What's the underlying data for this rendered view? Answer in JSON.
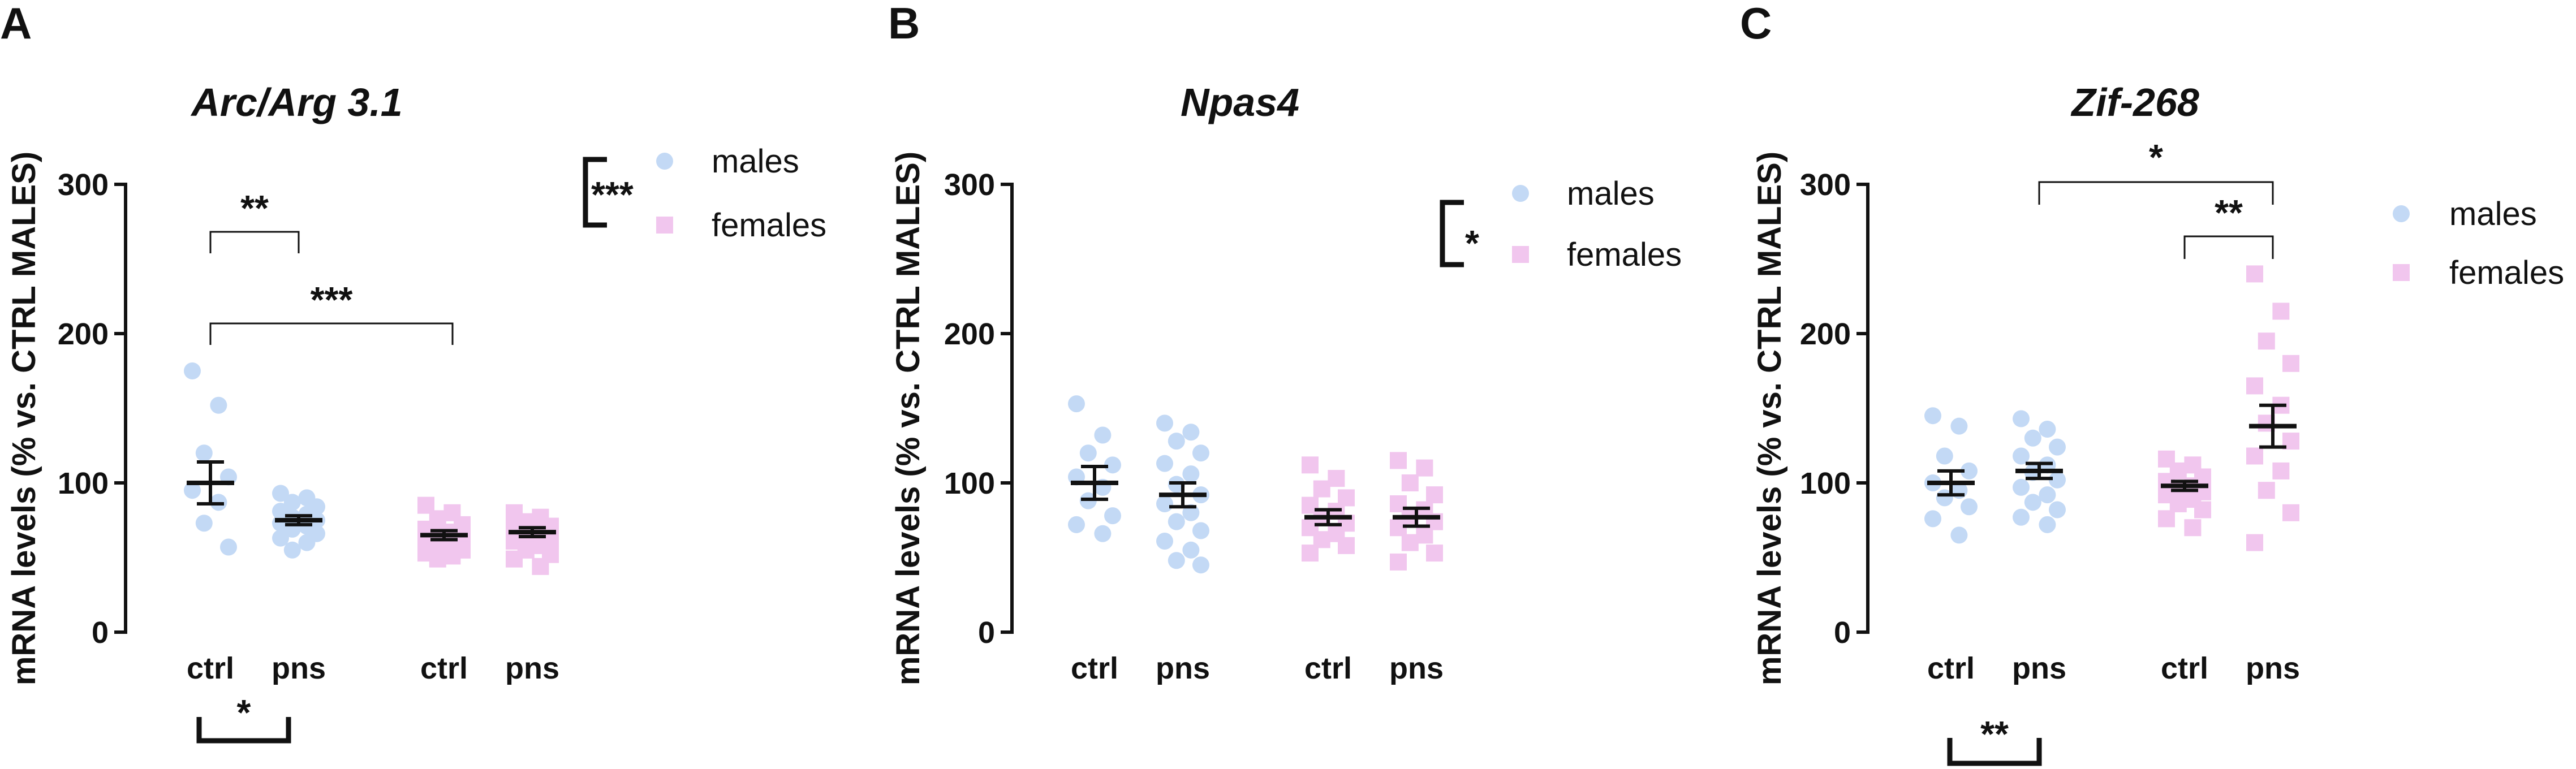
{
  "colors": {
    "males": "#c3d9f5",
    "females": "#f1c6ee",
    "ink": "#111111"
  },
  "chart_data": [
    {
      "type": "scatter",
      "panel": "A",
      "title": "Arc/Arg 3.1",
      "xlabel": "",
      "ylabel": "mRNA levels (% vs. CTRL MALES)",
      "ylim": [
        0,
        300
      ],
      "yticks": [
        0,
        100,
        200,
        300
      ],
      "categories": [
        "ctrl",
        "pns",
        "ctrl",
        "pns"
      ],
      "series": [
        {
          "name": "males",
          "marker": "circle",
          "groups": [
            {
              "category_index": 0,
              "label": "ctrl",
              "values": [
                175,
                152,
                120,
                104,
                95,
                87,
                73,
                57
              ],
              "mean": 100,
              "sem": 14
            },
            {
              "category_index": 1,
              "label": "pns",
              "values": [
                93,
                90,
                87,
                84,
                81,
                79,
                77,
                75,
                73,
                71,
                69,
                66,
                63,
                60,
                55
              ],
              "mean": 75,
              "sem": 3
            }
          ]
        },
        {
          "name": "females",
          "marker": "square",
          "groups": [
            {
              "category_index": 2,
              "label": "ctrl",
              "values": [
                85,
                80,
                76,
                72,
                69,
                67,
                65,
                63,
                61,
                59,
                57,
                55,
                53,
                51,
                49
              ],
              "mean": 65,
              "sem": 3
            },
            {
              "category_index": 3,
              "label": "pns",
              "values": [
                80,
                77,
                74,
                71,
                69,
                67,
                65,
                63,
                61,
                58,
                55,
                52,
                49,
                44
              ],
              "mean": 67,
              "sem": 3
            }
          ]
        }
      ],
      "legend": {
        "entries": [
          "males",
          "females"
        ],
        "position": "top-right",
        "bracket_label": "***"
      },
      "comparisons": [
        {
          "from": 0,
          "to": 1,
          "label": "**"
        },
        {
          "from": 0,
          "to": 2,
          "label": "***"
        }
      ],
      "bottom_bracket": {
        "from": 0,
        "to": 1,
        "label": "*"
      }
    },
    {
      "type": "scatter",
      "panel": "B",
      "title": "Npas4",
      "xlabel": "",
      "ylabel": "mRNA levels (% vs. CTRL MALES)",
      "ylim": [
        0,
        300
      ],
      "yticks": [
        0,
        100,
        200,
        300
      ],
      "categories": [
        "ctrl",
        "pns",
        "ctrl",
        "pns"
      ],
      "series": [
        {
          "name": "males",
          "marker": "circle",
          "groups": [
            {
              "category_index": 0,
              "label": "ctrl",
              "values": [
                153,
                132,
                120,
                112,
                104,
                97,
                88,
                78,
                72,
                66
              ],
              "mean": 100,
              "sem": 11
            },
            {
              "category_index": 1,
              "label": "pns",
              "values": [
                140,
                134,
                128,
                120,
                113,
                106,
                99,
                92,
                86,
                80,
                74,
                68,
                61,
                55,
                48,
                45
              ],
              "mean": 92,
              "sem": 8
            }
          ]
        },
        {
          "name": "females",
          "marker": "square",
          "groups": [
            {
              "category_index": 2,
              "label": "ctrl",
              "values": [
                112,
                103,
                96,
                90,
                85,
                81,
                77,
                73,
                70,
                66,
                62,
                58,
                53
              ],
              "mean": 77,
              "sem": 5
            },
            {
              "category_index": 3,
              "label": "pns",
              "values": [
                115,
                110,
                100,
                92,
                86,
                82,
                78,
                74,
                70,
                65,
                60,
                53,
                47
              ],
              "mean": 77,
              "sem": 6
            }
          ]
        }
      ],
      "legend": {
        "entries": [
          "males",
          "females"
        ],
        "position": "top-right",
        "bracket_label": "*"
      },
      "comparisons": [],
      "bottom_bracket": null
    },
    {
      "type": "scatter",
      "panel": "C",
      "title": "Zif-268",
      "xlabel": "",
      "ylabel": "mRNA levels (% vs. CTRL MALES)",
      "ylim": [
        0,
        300
      ],
      "yticks": [
        0,
        100,
        200,
        300
      ],
      "categories": [
        "ctrl",
        "pns",
        "ctrl",
        "pns"
      ],
      "series": [
        {
          "name": "males",
          "marker": "circle",
          "groups": [
            {
              "category_index": 0,
              "label": "ctrl",
              "values": [
                145,
                138,
                118,
                108,
                100,
                95,
                90,
                84,
                76,
                65
              ],
              "mean": 100,
              "sem": 8
            },
            {
              "category_index": 1,
              "label": "pns",
              "values": [
                143,
                136,
                130,
                124,
                118,
                112,
                107,
                102,
                97,
                92,
                87,
                82,
                77,
                72
              ],
              "mean": 108,
              "sem": 5
            }
          ]
        },
        {
          "name": "females",
          "marker": "square",
          "groups": [
            {
              "category_index": 2,
              "label": "ctrl",
              "values": [
                116,
                112,
                108,
                104,
                101,
                98,
                96,
                94,
                92,
                89,
                86,
                82,
                76,
                70
              ],
              "mean": 98,
              "sem": 3
            },
            {
              "category_index": 3,
              "label": "pns",
              "values": [
                240,
                215,
                195,
                180,
                165,
                152,
                140,
                128,
                118,
                108,
                95,
                80,
                60
              ],
              "mean": 138,
              "sem": 14
            }
          ]
        }
      ],
      "legend": {
        "entries": [
          "males",
          "females"
        ],
        "position": "top-right",
        "bracket_label": ""
      },
      "comparisons": [
        {
          "from": 2,
          "to": 3,
          "label": "**"
        },
        {
          "from": 1,
          "to": 3,
          "label": "*"
        }
      ],
      "bottom_bracket": {
        "from": 0,
        "to": 1,
        "label": "**"
      }
    }
  ]
}
